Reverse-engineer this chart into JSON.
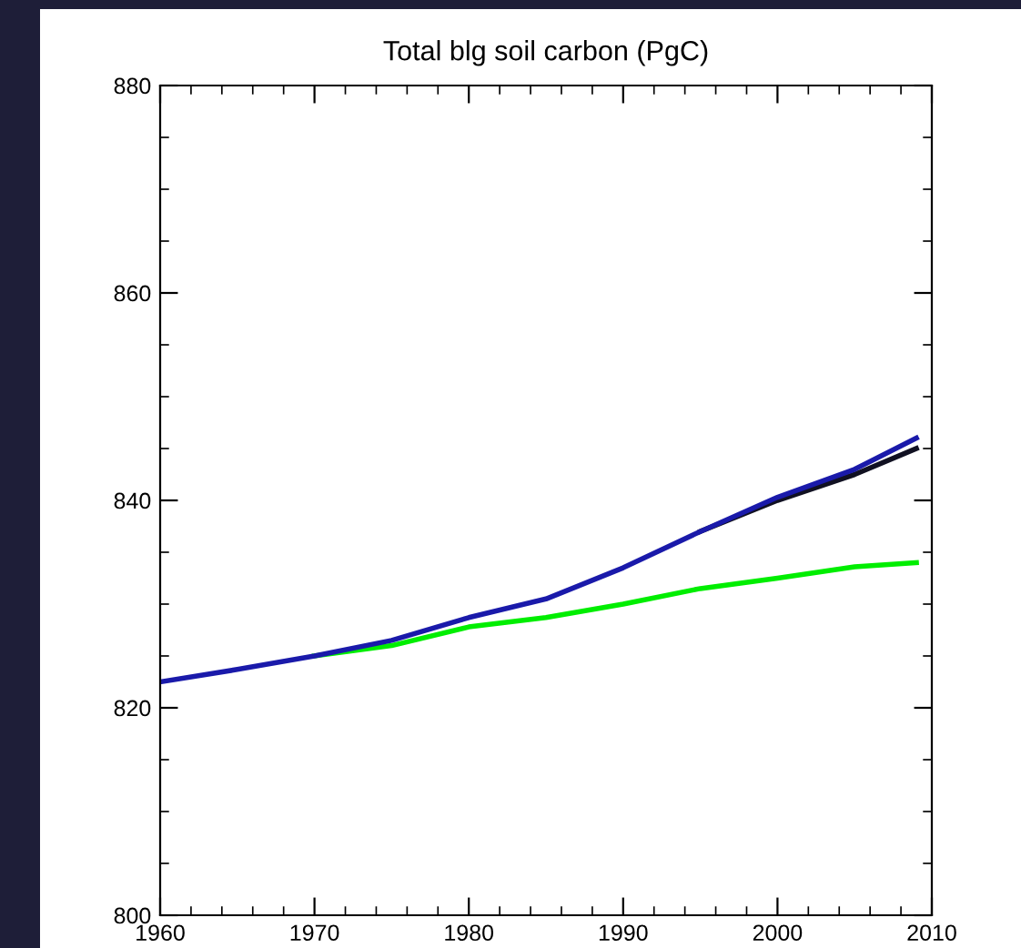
{
  "chart_data": {
    "type": "line",
    "title": "Total blg soil carbon (PgC)",
    "x": [
      1960,
      1965,
      1970,
      1975,
      1980,
      1985,
      1990,
      1995,
      2000,
      2005,
      2009
    ],
    "series": [
      {
        "color": "#00ee00",
        "values": [
          null,
          null,
          825,
          826,
          827.8,
          828.7,
          830,
          831.5,
          832.5,
          833.6,
          834
        ]
      },
      {
        "color": "#111122",
        "values": [
          null,
          null,
          null,
          null,
          null,
          null,
          null,
          837,
          840,
          842.5,
          845
        ]
      },
      {
        "color": "#1a1aaa",
        "values": [
          822.5,
          823.7,
          825,
          826.5,
          828.7,
          830.5,
          833.5,
          837,
          840.3,
          843,
          846
        ]
      }
    ],
    "xlim": [
      1960,
      2010
    ],
    "xticks": [
      1960,
      1970,
      1980,
      1990,
      2000,
      2010
    ],
    "ylim": [
      800,
      880
    ],
    "yticks": [
      800,
      820,
      840,
      860,
      880
    ],
    "grid": false,
    "legend": false,
    "marker": "none",
    "line_style": "solid"
  }
}
